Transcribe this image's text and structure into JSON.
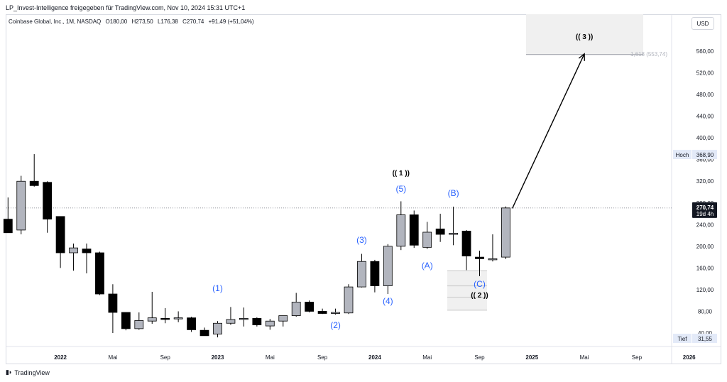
{
  "header": {
    "shared_by": "LP_Invest-Intelligence freigegeben für TradingView.com, Nov 10, 2024 15:31 UTC+1"
  },
  "legend": {
    "symbol": "Coinbase Global, Inc., 1M, NASDAQ",
    "open": "O180,00",
    "high": "H273,50",
    "low": "L176,38",
    "close": "C270,74",
    "change": "+91,49 (+51,04%)"
  },
  "currency": "USD",
  "footer": {
    "brand": "TradingView"
  },
  "colors": {
    "up": "#b2b5be",
    "down": "#000000",
    "wave_blue": "#2962ff",
    "price_tag": "#131722",
    "box": "#f0f0f0"
  },
  "chart_data": {
    "type": "candlestick",
    "timeframe": "1M",
    "ylim": [
      40,
      600
    ],
    "y_ticks": [
      40,
      80,
      120,
      160,
      200,
      240,
      280,
      320,
      360,
      400,
      440,
      480,
      520,
      560
    ],
    "x_ticks": [
      {
        "label": "2022",
        "i": 4
      },
      {
        "label": "Mai",
        "i": 8
      },
      {
        "label": "Sep",
        "i": 12
      },
      {
        "label": "2023",
        "i": 16
      },
      {
        "label": "Mai",
        "i": 20
      },
      {
        "label": "Sep",
        "i": 24
      },
      {
        "label": "2024",
        "i": 28
      },
      {
        "label": "Mai",
        "i": 32
      },
      {
        "label": "Sep",
        "i": 36
      },
      {
        "label": "2025",
        "i": 40
      },
      {
        "label": "Mai",
        "i": 44
      },
      {
        "label": "Sep",
        "i": 48
      },
      {
        "label": "2026",
        "i": 52
      }
    ],
    "candles": [
      {
        "o": 250,
        "h": 290,
        "l": 225,
        "c": 225
      },
      {
        "o": 230,
        "h": 330,
        "l": 222,
        "c": 320
      },
      {
        "o": 320,
        "h": 370,
        "l": 310,
        "c": 312
      },
      {
        "o": 318,
        "h": 320,
        "l": 225,
        "c": 250
      },
      {
        "o": 255,
        "h": 255,
        "l": 160,
        "c": 188
      },
      {
        "o": 188,
        "h": 205,
        "l": 155,
        "c": 197
      },
      {
        "o": 195,
        "h": 205,
        "l": 150,
        "c": 188
      },
      {
        "o": 188,
        "h": 190,
        "l": 110,
        "c": 112
      },
      {
        "o": 112,
        "h": 130,
        "l": 40,
        "c": 78
      },
      {
        "o": 78,
        "h": 78,
        "l": 45,
        "c": 48
      },
      {
        "o": 48,
        "h": 78,
        "l": 46,
        "c": 63
      },
      {
        "o": 62,
        "h": 116,
        "l": 57,
        "c": 68
      },
      {
        "o": 67,
        "h": 86,
        "l": 58,
        "c": 65
      },
      {
        "o": 66,
        "h": 80,
        "l": 60,
        "c": 68
      },
      {
        "o": 68,
        "h": 70,
        "l": 42,
        "c": 46
      },
      {
        "o": 45,
        "h": 50,
        "l": 37,
        "c": 35
      },
      {
        "o": 38,
        "h": 62,
        "l": 32,
        "c": 58
      },
      {
        "o": 58,
        "h": 88,
        "l": 55,
        "c": 65
      },
      {
        "o": 66,
        "h": 87,
        "l": 52,
        "c": 67
      },
      {
        "o": 67,
        "h": 69,
        "l": 52,
        "c": 55
      },
      {
        "o": 53,
        "h": 66,
        "l": 46,
        "c": 62
      },
      {
        "o": 62,
        "h": 70,
        "l": 52,
        "c": 72
      },
      {
        "o": 72,
        "h": 114,
        "l": 70,
        "c": 97
      },
      {
        "o": 97,
        "h": 100,
        "l": 78,
        "c": 80
      },
      {
        "o": 80,
        "h": 85,
        "l": 75,
        "c": 76
      },
      {
        "o": 76,
        "h": 85,
        "l": 74,
        "c": 78
      },
      {
        "o": 77,
        "h": 130,
        "l": 75,
        "c": 125
      },
      {
        "o": 125,
        "h": 186,
        "l": 124,
        "c": 172
      },
      {
        "o": 172,
        "h": 175,
        "l": 115,
        "c": 127
      },
      {
        "o": 127,
        "h": 204,
        "l": 112,
        "c": 200
      },
      {
        "o": 200,
        "h": 283,
        "l": 193,
        "c": 258
      },
      {
        "o": 258,
        "h": 266,
        "l": 197,
        "c": 202
      },
      {
        "o": 198,
        "h": 245,
        "l": 195,
        "c": 226
      },
      {
        "o": 232,
        "h": 260,
        "l": 208,
        "c": 222
      },
      {
        "o": 222,
        "h": 273,
        "l": 202,
        "c": 224
      },
      {
        "o": 228,
        "h": 230,
        "l": 156,
        "c": 182
      },
      {
        "o": 180,
        "h": 192,
        "l": 145,
        "c": 177
      },
      {
        "o": 176,
        "h": 222,
        "l": 172,
        "c": 177
      },
      {
        "o": 180,
        "h": 273.5,
        "l": 176.38,
        "c": 270.74
      }
    ],
    "wave_labels": [
      {
        "text": "(1)",
        "i": 16,
        "y": 410,
        "color": "blue"
      },
      {
        "text": "(2)",
        "i": 25,
        "y": 462,
        "color": "blue"
      },
      {
        "text": "(3)",
        "i": 27,
        "y": 342,
        "color": "blue"
      },
      {
        "text": "(4)",
        "i": 29,
        "y": 428,
        "color": "blue"
      },
      {
        "text": "(5)",
        "i": 30,
        "y": 270,
        "color": "blue"
      },
      {
        "text": "(( 1 ))",
        "i": 30,
        "y": 247,
        "color": "black"
      },
      {
        "text": "(A)",
        "i": 32,
        "y": 378,
        "color": "blue"
      },
      {
        "text": "(B)",
        "i": 34,
        "y": 276,
        "color": "blue"
      },
      {
        "text": "(C)",
        "i": 36,
        "y": 404,
        "color": "blue"
      },
      {
        "text": "(( 2 ))",
        "i": 36,
        "y": 419,
        "color": "black"
      },
      {
        "text": "(( 3 ))",
        "i": 44,
        "y": 55,
        "color": "black"
      }
    ],
    "fib_target": {
      "label": "1,618 (553,74)",
      "value": 553.74
    },
    "price_tag": {
      "price": "270,74",
      "countdown": "19d 4h"
    },
    "high_tag": {
      "label": "Hoch",
      "value": "368,90"
    },
    "low_tag": {
      "label": "Tief",
      "value": "31,55"
    },
    "projection_arrow": {
      "from": {
        "i": 38.5,
        "price": 270
      },
      "to": {
        "i": 44,
        "price": 555
      }
    }
  }
}
